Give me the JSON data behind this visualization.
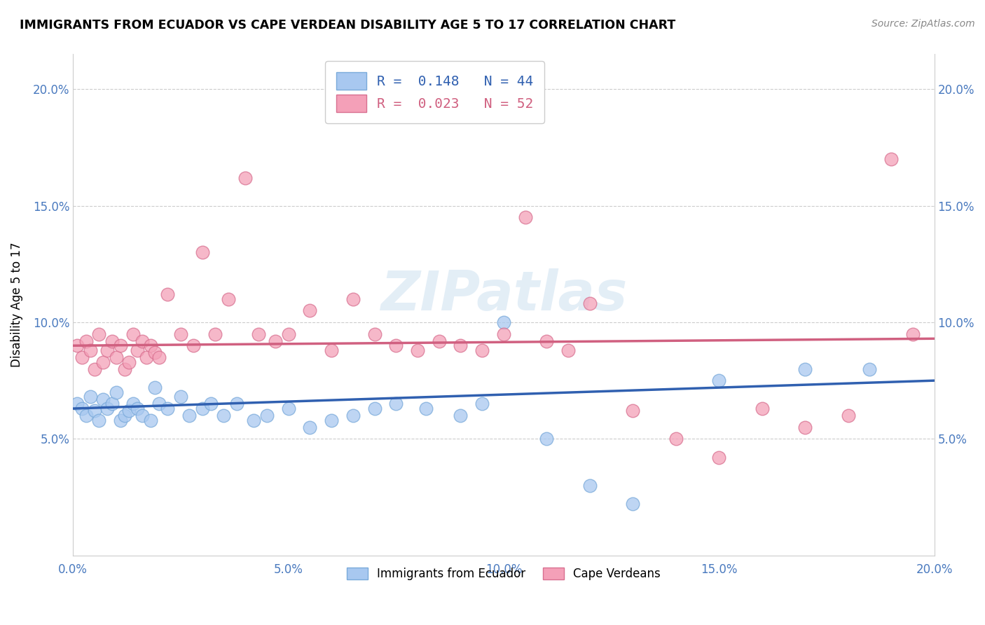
{
  "title": "IMMIGRANTS FROM ECUADOR VS CAPE VERDEAN DISABILITY AGE 5 TO 17 CORRELATION CHART",
  "source": "Source: ZipAtlas.com",
  "ylabel": "Disability Age 5 to 17",
  "xlim": [
    0.0,
    0.2
  ],
  "ylim": [
    0.0,
    0.215
  ],
  "x_ticks": [
    0.0,
    0.05,
    0.1,
    0.15,
    0.2
  ],
  "y_ticks": [
    0.05,
    0.1,
    0.15,
    0.2
  ],
  "x_tick_labels": [
    "0.0%",
    "5.0%",
    "10.0%",
    "15.0%",
    "20.0%"
  ],
  "y_tick_labels": [
    "5.0%",
    "10.0%",
    "15.0%",
    "20.0%"
  ],
  "ecuador_color": "#a8c8f0",
  "ecuador_edge_color": "#7aaada",
  "cape_verde_color": "#f4a0b8",
  "cape_verde_edge_color": "#d87090",
  "ecuador_line_color": "#3060b0",
  "cape_verde_line_color": "#d06080",
  "R_ecuador": 0.148,
  "N_ecuador": 44,
  "R_cape_verde": 0.023,
  "N_cape_verde": 52,
  "watermark": "ZIPatlas",
  "ecuador_x": [
    0.001,
    0.002,
    0.003,
    0.004,
    0.005,
    0.006,
    0.007,
    0.008,
    0.009,
    0.01,
    0.011,
    0.012,
    0.013,
    0.014,
    0.015,
    0.016,
    0.018,
    0.019,
    0.02,
    0.022,
    0.025,
    0.027,
    0.03,
    0.032,
    0.035,
    0.038,
    0.042,
    0.045,
    0.05,
    0.055,
    0.06,
    0.065,
    0.07,
    0.075,
    0.082,
    0.09,
    0.095,
    0.1,
    0.11,
    0.12,
    0.13,
    0.15,
    0.17,
    0.185
  ],
  "ecuador_y": [
    0.065,
    0.063,
    0.06,
    0.068,
    0.062,
    0.058,
    0.067,
    0.063,
    0.065,
    0.07,
    0.058,
    0.06,
    0.062,
    0.065,
    0.063,
    0.06,
    0.058,
    0.072,
    0.065,
    0.063,
    0.068,
    0.06,
    0.063,
    0.065,
    0.06,
    0.065,
    0.058,
    0.06,
    0.063,
    0.055,
    0.058,
    0.06,
    0.063,
    0.065,
    0.063,
    0.06,
    0.065,
    0.1,
    0.05,
    0.03,
    0.022,
    0.075,
    0.08,
    0.08
  ],
  "cape_verde_x": [
    0.001,
    0.002,
    0.003,
    0.004,
    0.005,
    0.006,
    0.007,
    0.008,
    0.009,
    0.01,
    0.011,
    0.012,
    0.013,
    0.014,
    0.015,
    0.016,
    0.017,
    0.018,
    0.019,
    0.02,
    0.022,
    0.025,
    0.028,
    0.03,
    0.033,
    0.036,
    0.04,
    0.043,
    0.047,
    0.05,
    0.055,
    0.06,
    0.065,
    0.07,
    0.075,
    0.08,
    0.085,
    0.09,
    0.095,
    0.1,
    0.105,
    0.11,
    0.115,
    0.12,
    0.13,
    0.14,
    0.15,
    0.16,
    0.17,
    0.18,
    0.19,
    0.195
  ],
  "cape_verde_y": [
    0.09,
    0.085,
    0.092,
    0.088,
    0.08,
    0.095,
    0.083,
    0.088,
    0.092,
    0.085,
    0.09,
    0.08,
    0.083,
    0.095,
    0.088,
    0.092,
    0.085,
    0.09,
    0.087,
    0.085,
    0.112,
    0.095,
    0.09,
    0.13,
    0.095,
    0.11,
    0.162,
    0.095,
    0.092,
    0.095,
    0.105,
    0.088,
    0.11,
    0.095,
    0.09,
    0.088,
    0.092,
    0.09,
    0.088,
    0.095,
    0.145,
    0.092,
    0.088,
    0.108,
    0.062,
    0.05,
    0.042,
    0.063,
    0.055,
    0.06,
    0.17,
    0.095
  ]
}
